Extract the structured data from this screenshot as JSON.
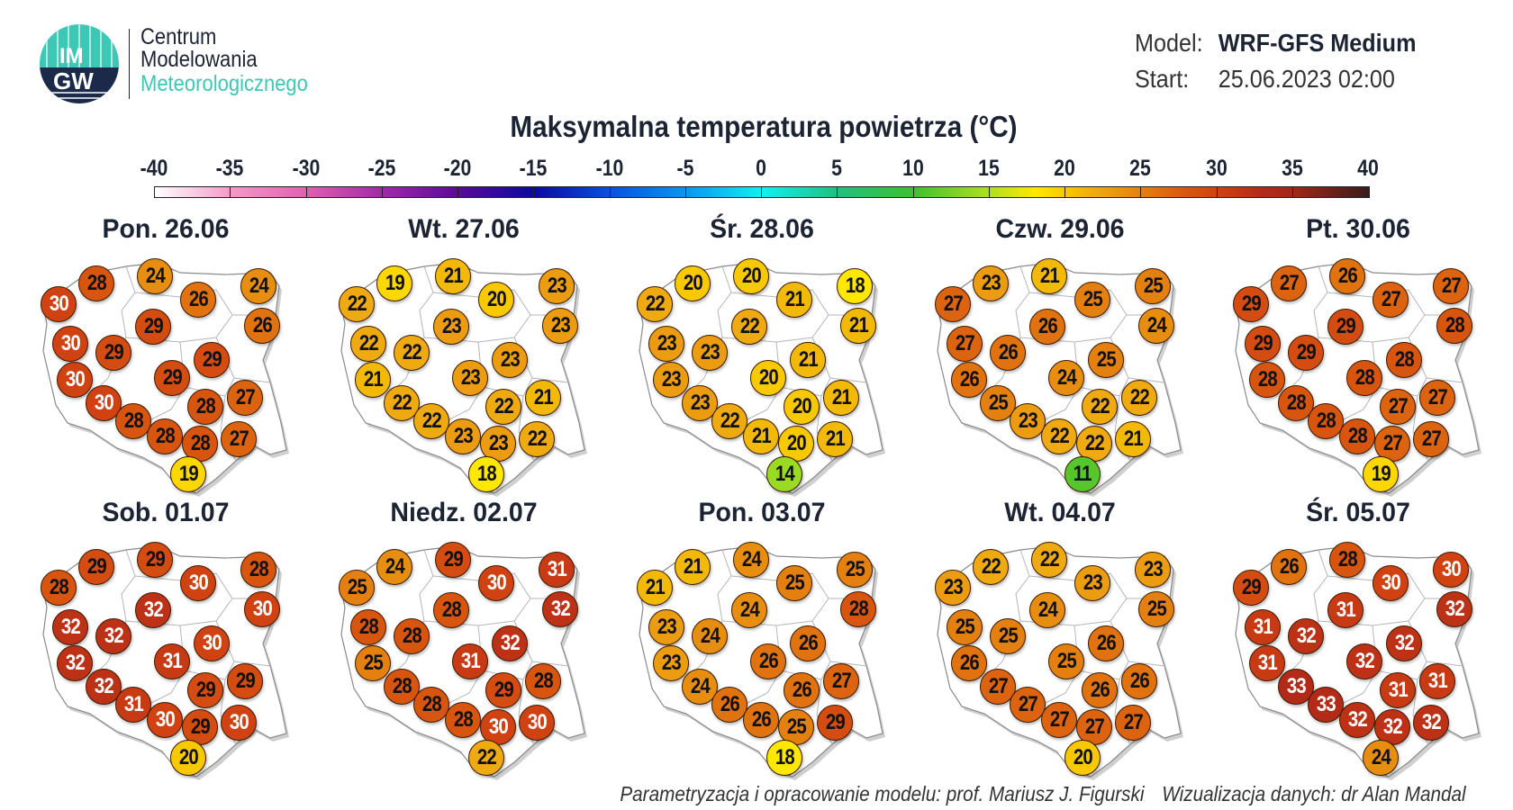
{
  "logo": {
    "mark_top": "IM",
    "mark_bottom": "GW",
    "line1": "Centrum",
    "line2": "Modelowania",
    "line3": "Meteorologicznego",
    "accent": "#3cc8b4",
    "navy": "#1b2a48"
  },
  "meta": {
    "model_label": "Model:",
    "model_value": "WRF-GFS Medium",
    "start_label": "Start:",
    "start_value": "25.06.2023 02:00"
  },
  "title": "Maksymalna temperatura powietrza (°C)",
  "colorbar": {
    "ticks": [
      "-40",
      "-35",
      "-30",
      "-25",
      "-20",
      "-15",
      "-10",
      "-5",
      "0",
      "5",
      "10",
      "15",
      "20",
      "25",
      "30",
      "35",
      "40"
    ],
    "stops": [
      {
        "v": -40,
        "c": "#ffffff"
      },
      {
        "v": -35,
        "c": "#f49ac8"
      },
      {
        "v": -30,
        "c": "#e060b0"
      },
      {
        "v": -25,
        "c": "#a02aa8"
      },
      {
        "v": -20,
        "c": "#5a0a98"
      },
      {
        "v": -15,
        "c": "#0a0aa0"
      },
      {
        "v": -10,
        "c": "#0a50e0"
      },
      {
        "v": -5,
        "c": "#0a96f0"
      },
      {
        "v": 0,
        "c": "#10f0f0"
      },
      {
        "v": 5,
        "c": "#20c080"
      },
      {
        "v": 10,
        "c": "#40c030"
      },
      {
        "v": 15,
        "c": "#b0e020"
      },
      {
        "v": 18,
        "c": "#ffe800"
      },
      {
        "v": 20,
        "c": "#f8c800"
      },
      {
        "v": 22,
        "c": "#eeaa10"
      },
      {
        "v": 25,
        "c": "#e48010"
      },
      {
        "v": 28,
        "c": "#d85510"
      },
      {
        "v": 30,
        "c": "#d04212"
      },
      {
        "v": 33,
        "c": "#b42a18"
      },
      {
        "v": 35,
        "c": "#a02818"
      },
      {
        "v": 40,
        "c": "#3a1c1c"
      }
    ]
  },
  "days": [
    {
      "label": "Pon. 26.06",
      "temps": [
        30,
        28,
        24,
        26,
        24,
        26,
        29,
        30,
        29,
        29,
        29,
        30,
        30,
        28,
        27,
        28,
        28,
        28,
        27,
        19
      ]
    },
    {
      "label": "Wt. 27.06",
      "temps": [
        22,
        19,
        21,
        20,
        23,
        23,
        23,
        22,
        22,
        23,
        23,
        21,
        22,
        22,
        21,
        22,
        23,
        23,
        22,
        18
      ]
    },
    {
      "label": "Śr. 28.06",
      "temps": [
        22,
        20,
        20,
        21,
        18,
        21,
        22,
        23,
        23,
        21,
        20,
        23,
        23,
        20,
        21,
        22,
        21,
        20,
        21,
        14
      ]
    },
    {
      "label": "Czw. 29.06",
      "temps": [
        27,
        23,
        21,
        25,
        25,
        24,
        26,
        27,
        26,
        25,
        24,
        26,
        25,
        22,
        22,
        23,
        22,
        22,
        21,
        11
      ]
    },
    {
      "label": "Pt. 30.06",
      "temps": [
        29,
        27,
        26,
        27,
        27,
        28,
        29,
        29,
        29,
        28,
        28,
        28,
        28,
        27,
        27,
        28,
        28,
        27,
        27,
        19
      ]
    },
    {
      "label": "Sob. 01.07",
      "temps": [
        28,
        29,
        29,
        30,
        28,
        30,
        32,
        32,
        32,
        30,
        31,
        32,
        32,
        29,
        29,
        31,
        30,
        29,
        30,
        20
      ]
    },
    {
      "label": "Niedz. 02.07",
      "temps": [
        25,
        24,
        29,
        30,
        31,
        32,
        28,
        28,
        28,
        32,
        31,
        25,
        28,
        29,
        28,
        28,
        28,
        30,
        30,
        22
      ]
    },
    {
      "label": "Pon. 03.07",
      "temps": [
        21,
        21,
        24,
        25,
        25,
        28,
        24,
        23,
        24,
        26,
        26,
        23,
        24,
        26,
        27,
        26,
        26,
        25,
        29,
        18
      ]
    },
    {
      "label": "Wt. 04.07",
      "temps": [
        23,
        22,
        22,
        23,
        23,
        25,
        24,
        25,
        25,
        26,
        25,
        26,
        27,
        26,
        26,
        27,
        27,
        27,
        27,
        20
      ]
    },
    {
      "label": "Śr. 05.07",
      "temps": [
        29,
        26,
        28,
        30,
        30,
        32,
        31,
        31,
        32,
        32,
        32,
        31,
        33,
        31,
        31,
        33,
        32,
        32,
        32,
        24
      ]
    }
  ],
  "footer": {
    "credit_model": "Parametryzacja i opracowanie modelu: prof. Mariusz J. Figurski",
    "credit_viz": "Wizualizacja danych: dr Alan Mandal"
  }
}
